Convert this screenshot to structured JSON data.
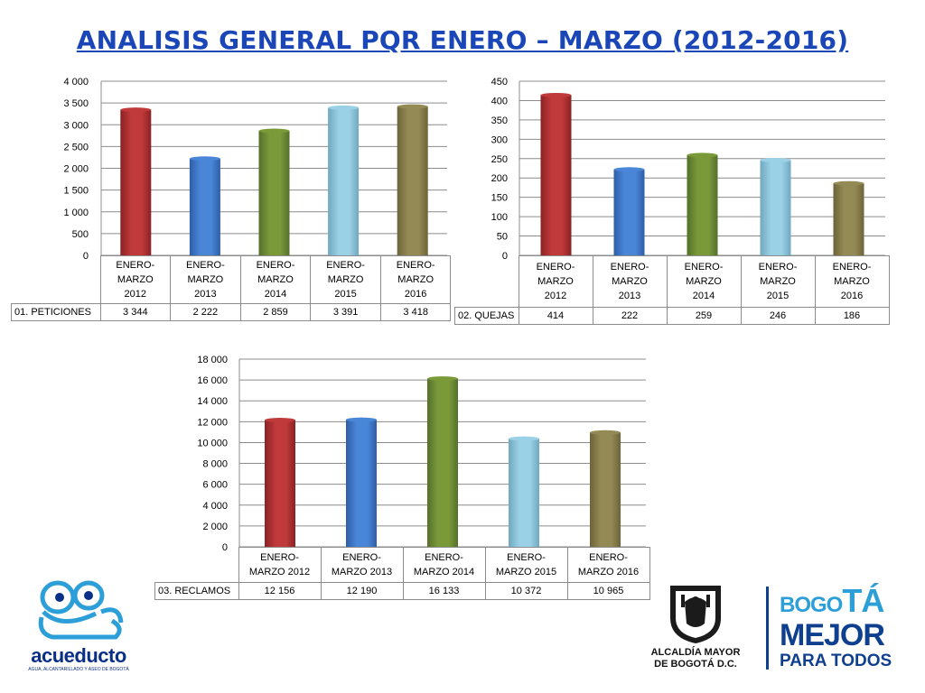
{
  "title": "ANALISIS GENERAL PQR ENERO – MARZO (2012-2016)",
  "chart_data": [
    {
      "type": "bar",
      "categories": [
        "ENERO-MARZO 2012",
        "ENERO-MARZO 2013",
        "ENERO-MARZO 2014",
        "ENERO-MARZO 2015",
        "ENERO-MARZO 2016"
      ],
      "category_lines": [
        [
          "ENERO-",
          "MARZO",
          "2012"
        ],
        [
          "ENERO-",
          "MARZO",
          "2013"
        ],
        [
          "ENERO-",
          "MARZO",
          "2014"
        ],
        [
          "ENERO-",
          "MARZO",
          "2015"
        ],
        [
          "ENERO-",
          "MARZO",
          "2016"
        ]
      ],
      "series": [
        {
          "name": "01. PETICIONES",
          "values": [
            3344,
            2222,
            2859,
            3391,
            3418
          ]
        }
      ],
      "value_labels": [
        "3 344",
        "2 222",
        "2 859",
        "3 391",
        "3 418"
      ],
      "ylim": [
        0,
        4000
      ],
      "yticks": [
        0,
        500,
        1000,
        1500,
        2000,
        2500,
        3000,
        3500,
        4000
      ],
      "ytick_labels": [
        "0",
        "500",
        "1 000",
        "1 500",
        "2 000",
        "2 500",
        "3 000",
        "3 500",
        "4 000"
      ],
      "grid": true,
      "data_table": true
    },
    {
      "type": "bar",
      "categories": [
        "ENERO-MARZO 2012",
        "ENERO-MARZO 2013",
        "ENERO-MARZO 2014",
        "ENERO-MARZO 2015",
        "ENERO-MARZO 2016"
      ],
      "category_lines": [
        [
          "ENERO-",
          "MARZO",
          "2012"
        ],
        [
          "ENERO-",
          "MARZO",
          "2013"
        ],
        [
          "ENERO-",
          "MARZO",
          "2014"
        ],
        [
          "ENERO-",
          "MARZO",
          "2015"
        ],
        [
          "ENERO-",
          "MARZO",
          "2016"
        ]
      ],
      "series": [
        {
          "name": "02. QUEJAS",
          "values": [
            414,
            222,
            259,
            246,
            186
          ]
        }
      ],
      "value_labels": [
        "414",
        "222",
        "259",
        "246",
        "186"
      ],
      "ylim": [
        0,
        450
      ],
      "yticks": [
        0,
        50,
        100,
        150,
        200,
        250,
        300,
        350,
        400,
        450
      ],
      "ytick_labels": [
        "0",
        "50",
        "100",
        "150",
        "200",
        "250",
        "300",
        "350",
        "400",
        "450"
      ],
      "grid": true,
      "data_table": true
    },
    {
      "type": "bar",
      "categories": [
        "ENERO-MARZO 2012",
        "ENERO-MARZO 2013",
        "ENERO-MARZO 2014",
        "ENERO-MARZO 2015",
        "ENERO-MARZO 2016"
      ],
      "category_lines": [
        [
          "ENERO-",
          "MARZO 2012"
        ],
        [
          "ENERO-",
          "MARZO 2013"
        ],
        [
          "ENERO-",
          "MARZO 2014"
        ],
        [
          "ENERO-",
          "MARZO 2015"
        ],
        [
          "ENERO-",
          "MARZO 2016"
        ]
      ],
      "series": [
        {
          "name": "03. RECLAMOS",
          "values": [
            12156,
            12190,
            16133,
            10372,
            10965
          ]
        }
      ],
      "value_labels": [
        "12 156",
        "12 190",
        "16 133",
        "10 372",
        "10 965"
      ],
      "ylim": [
        0,
        18000
      ],
      "yticks": [
        0,
        2000,
        4000,
        6000,
        8000,
        10000,
        12000,
        14000,
        16000,
        18000
      ],
      "ytick_labels": [
        "0",
        "2 000",
        "4 000",
        "6 000",
        "8 000",
        "10 000",
        "12 000",
        "14 000",
        "16 000",
        "18 000"
      ],
      "grid": true,
      "data_table": true
    }
  ],
  "bar_colors": [
    "#c0393b",
    "#4a86d8",
    "#7a9a3a",
    "#9bd1e6",
    "#948a55"
  ],
  "bar_colors_dark": [
    "#8a2224",
    "#2e5ea6",
    "#55702a",
    "#6fa8c0",
    "#6c6439"
  ],
  "logos": {
    "acueducto": {
      "name": "acueducto",
      "tagline": "AGUA, ALCANTARILLADO Y ASEO DE BOGOTÁ"
    },
    "alcaldia": {
      "line1": "ALCALDÍA MAYOR",
      "line2": "DE BOGOTÁ D.C."
    },
    "bogota": {
      "bo": "BO",
      "go": "GO",
      "ta": "TÁ",
      "mejor": "MEJOR",
      "para_todos": "PARA TODOS"
    }
  }
}
